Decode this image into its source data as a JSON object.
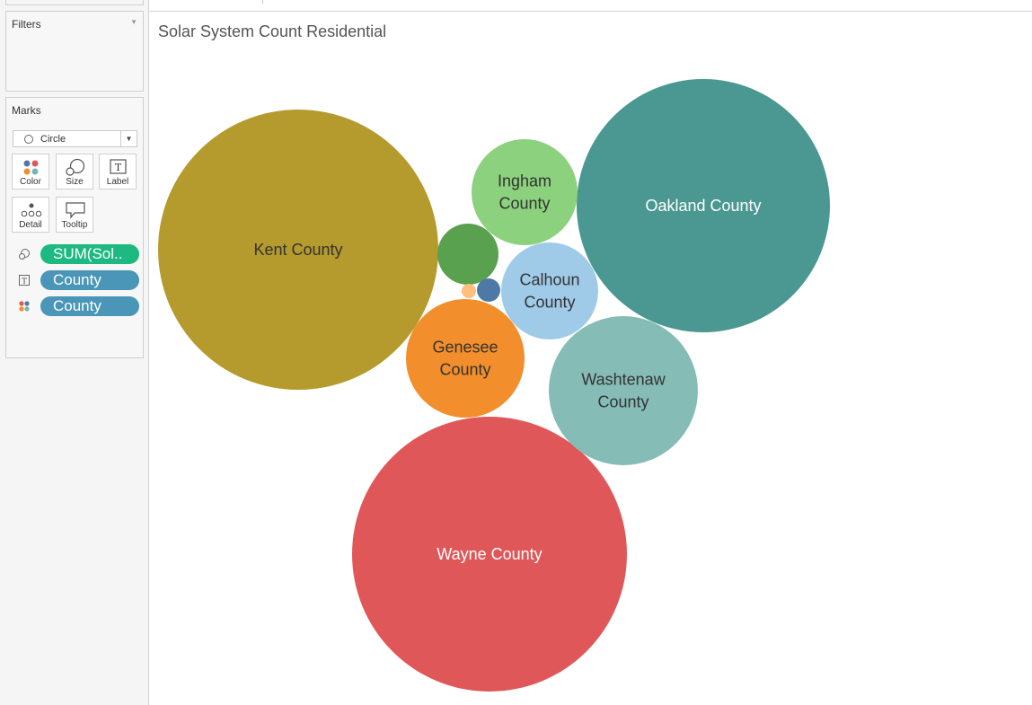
{
  "filters": {
    "title": "Filters"
  },
  "marks": {
    "title": "Marks",
    "mark_type": "Circle",
    "buttons": {
      "color": "Color",
      "size": "Size",
      "label": "Label",
      "detail": "Detail",
      "tooltip": "Tooltip"
    },
    "pills": [
      {
        "shelf": "size",
        "text": "SUM(Sol..",
        "color": "#1eb980"
      },
      {
        "shelf": "label",
        "text": "County",
        "color": "#4a96b8"
      },
      {
        "shelf": "color",
        "text": "County",
        "color": "#4a96b8"
      }
    ]
  },
  "chart_data": {
    "type": "bubble",
    "title": "Solar System Count Residential",
    "bubbles": [
      {
        "label": "Kent County",
        "color": "#b59a2d",
        "text_color": "#333333"
      },
      {
        "label": "Oakland County",
        "color": "#4a9891",
        "text_color": "#ffffff"
      },
      {
        "label": "Wayne County",
        "color": "#e05759",
        "text_color": "#ffffff"
      },
      {
        "label": "Washtenaw County",
        "color": "#86bcb6",
        "text_color": "#333333"
      },
      {
        "label": "Ingham County",
        "color": "#8cd17d",
        "text_color": "#333333"
      },
      {
        "label": "Calhoun County",
        "color": "#a0cbe8",
        "text_color": "#333333"
      },
      {
        "label": "Genesee County",
        "color": "#f28e2b",
        "text_color": "#333333"
      },
      {
        "label": "",
        "color": "#59a14f",
        "text_color": "#333333"
      },
      {
        "label": "",
        "color": "#4e79a7",
        "text_color": "#333333"
      },
      {
        "label": "",
        "color": "#ffbe7d",
        "text_color": "#333333"
      }
    ]
  }
}
